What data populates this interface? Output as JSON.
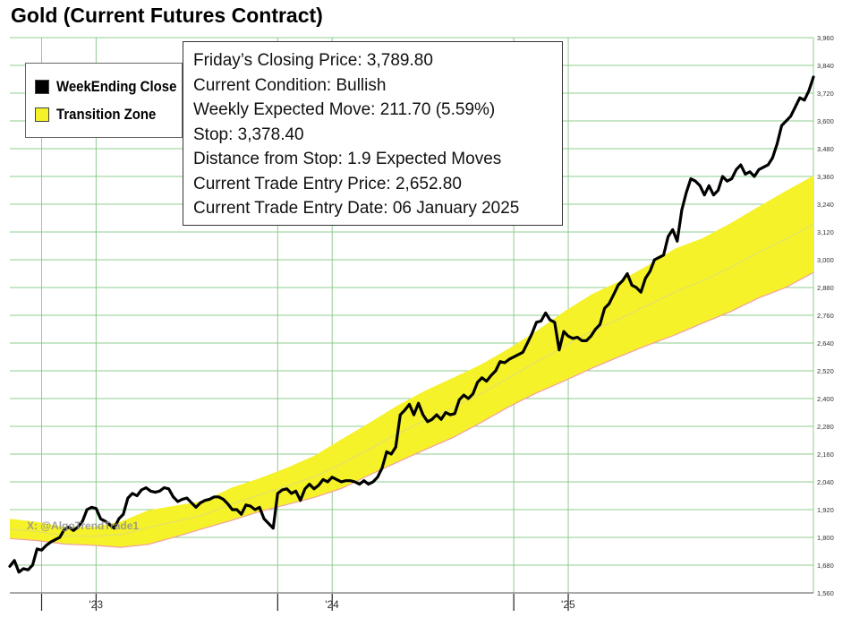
{
  "title": "Gold (Current Futures Contract)",
  "legend": {
    "items": [
      {
        "label": "WeekEnding Close",
        "color": "#000000"
      },
      {
        "label": "Transition Zone",
        "color": "#f5f22a"
      }
    ]
  },
  "info_box": {
    "lines": [
      "Friday’s Closing Price: 3,789.80",
      "Current Condition: Bullish",
      "Weekly Expected Move: 211.70 (5.59%)",
      "Stop: 3,378.40",
      "Distance from Stop: 1.9 Expected Moves",
      "Current Trade Entry Price: 2,652.80",
      "Current Trade Entry Date: 06 January 2025"
    ]
  },
  "watermark": "X: @AlgoTrendTrade1",
  "colors": {
    "close_line": "#000000",
    "zone_fill": "#f5f22a",
    "zone_edge": "#f2a0a0",
    "zone_mid": "#e3e06a",
    "grid": "#8fcc8f"
  },
  "chart_data": {
    "type": "line",
    "ylim": [
      1560,
      3960
    ],
    "yticks": [
      "1,560",
      "1,680",
      "1,800",
      "1,920",
      "2,040",
      "2,160",
      "2,280",
      "2,400",
      "2,520",
      "2,640",
      "2,760",
      "2,880",
      "3,000",
      "3,120",
      "3,240",
      "3,360",
      "3,480",
      "3,600",
      "3,720",
      "3,840",
      "3,960"
    ],
    "xticks": [
      {
        "label": "",
        "week": 7
      },
      {
        "label": "'23",
        "week": 19
      },
      {
        "label": "",
        "week": 59
      },
      {
        "label": "'24",
        "week": 71
      },
      {
        "label": "",
        "week": 111
      },
      {
        "label": "'25",
        "week": 123
      }
    ],
    "grid": "horizontal and vertical",
    "legend_position": "top-left",
    "series": [
      {
        "name": "WeekEnding Close",
        "values": [
          1675,
          1700,
          1650,
          1665,
          1660,
          1680,
          1750,
          1745,
          1765,
          1780,
          1790,
          1800,
          1835,
          1845,
          1830,
          1845,
          1870,
          1920,
          1930,
          1925,
          1880,
          1870,
          1855,
          1840,
          1880,
          1900,
          1970,
          1990,
          1980,
          2005,
          2015,
          2000,
          1995,
          2000,
          2015,
          2010,
          1975,
          1955,
          1965,
          1970,
          1950,
          1930,
          1950,
          1960,
          1965,
          1975,
          1975,
          1965,
          1945,
          1920,
          1920,
          1900,
          1940,
          1935,
          1920,
          1930,
          1880,
          1860,
          1840,
          1990,
          2005,
          2010,
          1990,
          2000,
          1960,
          2010,
          2030,
          2010,
          2025,
          2050,
          2040,
          2060,
          2050,
          2040,
          2045,
          2045,
          2040,
          2030,
          2045,
          2030,
          2040,
          2060,
          2100,
          2170,
          2160,
          2190,
          2330,
          2350,
          2375,
          2330,
          2380,
          2330,
          2300,
          2310,
          2330,
          2310,
          2340,
          2330,
          2335,
          2395,
          2415,
          2400,
          2420,
          2470,
          2490,
          2475,
          2500,
          2520,
          2560,
          2555,
          2570,
          2580,
          2590,
          2600,
          2640,
          2680,
          2730,
          2735,
          2770,
          2740,
          2730,
          2610,
          2690,
          2670,
          2660,
          2665,
          2650,
          2650,
          2670,
          2700,
          2720,
          2790,
          2810,
          2850,
          2890,
          2910,
          2940,
          2890,
          2880,
          2860,
          2920,
          2950,
          3000,
          3010,
          3020,
          3100,
          3130,
          3080,
          3215,
          3290,
          3350,
          3340,
          3320,
          3280,
          3320,
          3280,
          3300,
          3360,
          3340,
          3350,
          3390,
          3410,
          3370,
          3380,
          3360,
          3390,
          3400,
          3410,
          3440,
          3500,
          3580,
          3600,
          3620,
          3660,
          3700,
          3690,
          3730,
          3789.8
        ]
      },
      {
        "name": "Transition Zone",
        "upper": [
          1880,
          1867,
          1844,
          1845,
          1868,
          1917,
          1938,
          1958,
          2015,
          2055,
          2101,
          2154,
          2226,
          2297,
          2371,
          2435,
          2490,
          2547,
          2616,
          2691,
          2776,
          2851,
          2907,
          2974,
          3048,
          3093,
          3157,
          3228,
          3297,
          3363
        ],
        "lower": [
          1795,
          1786,
          1771,
          1766,
          1757,
          1770,
          1803,
          1839,
          1873,
          1911,
          1942,
          1973,
          2013,
          2071,
          2126,
          2180,
          2232,
          2296,
          2364,
          2424,
          2476,
          2531,
          2581,
          2630,
          2675,
          2726,
          2775,
          2834,
          2880,
          2945
        ],
        "middle": [
          1835,
          1826,
          1807,
          1805,
          1812,
          1843,
          1870,
          1898,
          1944,
          1983,
          2021,
          2063,
          2119,
          2184,
          2248,
          2307,
          2361,
          2421,
          2490,
          2557,
          2626,
          2691,
          2744,
          2802,
          2861,
          2909,
          2966,
          3031,
          3088,
          3154
        ]
      }
    ]
  }
}
